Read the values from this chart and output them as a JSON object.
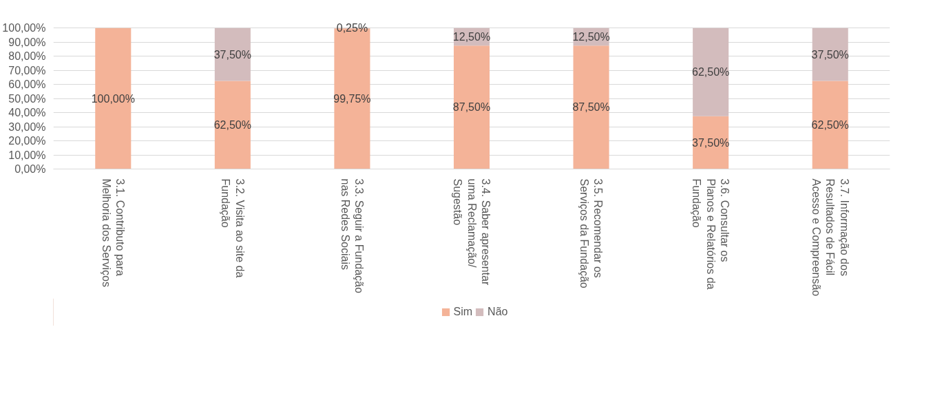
{
  "chart_data": {
    "type": "bar",
    "stacked": true,
    "categories": [
      "3.1. Contributo para\nMelhoria dos Serviços",
      "3.2. Visita ao site da\nFundação",
      "3.3. Seguir a Fundação\nnas Redes Sociais",
      "3.4. Saber apresentar\numa Reclamação/\nSugestão",
      "3.5. Recomendar os\nServiços da Fundação",
      "3.6. Consultar os\nPlanos e Relatórios da\nFundação",
      "3.7. Informação dos\nResultados de Fácil\nAcesso e Compreensão"
    ],
    "series": [
      {
        "name": "Sim",
        "color": "#f4b398",
        "values": [
          100,
          62.5,
          99.75,
          87.5,
          87.5,
          37.5,
          62.5
        ],
        "value_labels": [
          "100,00%",
          "62,50%",
          "99,75%",
          "87,50%",
          "87,50%",
          "37,50%",
          "62,50%"
        ]
      },
      {
        "name": "Não",
        "color": "#d3bcbd",
        "values": [
          0,
          37.5,
          0.25,
          12.5,
          12.5,
          62.5,
          37.5
        ],
        "value_labels": [
          null,
          "37,50%",
          "0,25%",
          "12,50%",
          "12,50%",
          "62,50%",
          "37,50%"
        ]
      }
    ],
    "ylim": [
      0,
      100
    ],
    "yticks": [
      {
        "value": 0,
        "label": "0,00%"
      },
      {
        "value": 10,
        "label": "10,00%"
      },
      {
        "value": 20,
        "label": "20,00%"
      },
      {
        "value": 30,
        "label": "30,00%"
      },
      {
        "value": 40,
        "label": "40,00%"
      },
      {
        "value": 50,
        "label": "50,00%"
      },
      {
        "value": 60,
        "label": "60,00%"
      },
      {
        "value": 70,
        "label": "70,00%"
      },
      {
        "value": 80,
        "label": "80,00%"
      },
      {
        "value": 90,
        "label": "90,00%"
      },
      {
        "value": 100,
        "label": "100,00%"
      }
    ],
    "grid": "y",
    "legend": "bottom"
  }
}
